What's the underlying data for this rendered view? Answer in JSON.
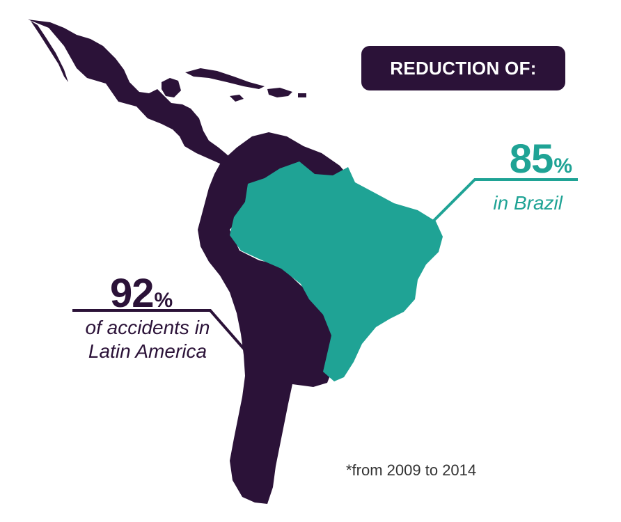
{
  "header": {
    "badge_text": "REDUCTION OF:"
  },
  "stats": {
    "brazil": {
      "value": "85",
      "unit": "%",
      "caption": "in Brazil"
    },
    "latin_america": {
      "value": "92",
      "unit": "%",
      "caption_line1": "of accidents in",
      "caption_line2": "Latin America"
    }
  },
  "footnote": "*from 2009 to 2014",
  "colors": {
    "latin_america": "#2b1238",
    "brazil": "#1fa395",
    "background": "#ffffff"
  }
}
